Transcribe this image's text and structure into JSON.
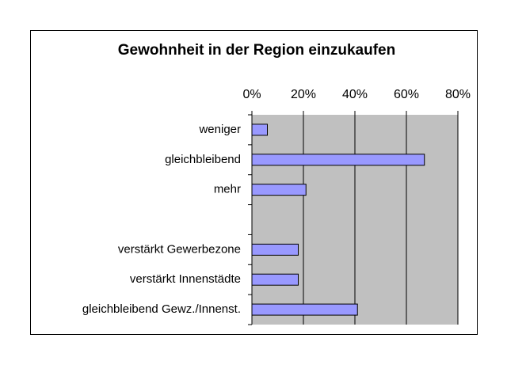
{
  "chart_data": {
    "type": "bar",
    "orientation": "horizontal",
    "title": "Gewohnheit in der Region einzukaufen",
    "categories": [
      "weniger",
      "gleichbleibend",
      "mehr",
      null,
      "verstärkt Gewerbezone",
      "verstärkt Innenstädte",
      "gleichbleibend  Gewz./Innenst."
    ],
    "values": [
      6,
      67,
      21,
      null,
      18,
      18,
      41
    ],
    "color": "#9999ff",
    "xlim": [
      0,
      80
    ],
    "xticks": [
      {
        "value": 0,
        "label": "0%"
      },
      {
        "value": 20,
        "label": "20%"
      },
      {
        "value": 40,
        "label": "40%"
      },
      {
        "value": 60,
        "label": "60%"
      },
      {
        "value": 80,
        "label": "80%"
      }
    ],
    "grid": true
  }
}
